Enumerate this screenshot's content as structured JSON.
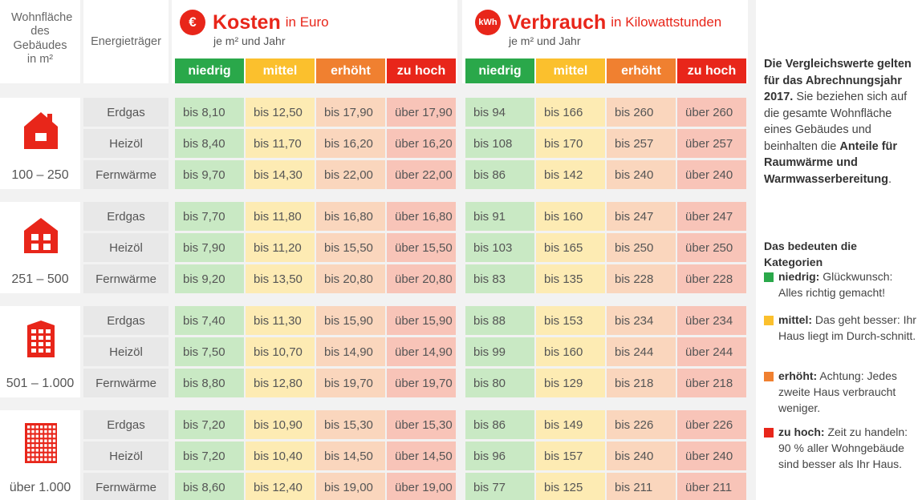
{
  "header": {
    "area_label": "Wohnfläche des Gebäudes in m²",
    "carrier_label": "Energieträger",
    "costs": {
      "icon": "€",
      "title": "Kosten",
      "title_suffix": "in Euro",
      "subtitle": "je m² und Jahr"
    },
    "consumption": {
      "icon": "kWh",
      "title": "Verbrauch",
      "title_suffix": "in Kilowattstunden",
      "subtitle": "je m² und Jahr"
    },
    "categories": [
      "niedrig",
      "mittel",
      "erhöht",
      "zu hoch"
    ]
  },
  "colors": {
    "accent": "#e8261a",
    "cat_dark": [
      "#2aa84a",
      "#fbc02d",
      "#f08030",
      "#e8261a"
    ],
    "cat_light": [
      "#c9e9c4",
      "#fdebb3",
      "#fad6bd",
      "#f8c4b8"
    ]
  },
  "groups": [
    {
      "size": "100 – 250",
      "icon": "house-small-icon",
      "rows": [
        {
          "carrier": "Erdgas",
          "costs": [
            "bis  8,10",
            "bis 12,50",
            "bis 17,90",
            "über 17,90"
          ],
          "consumption": [
            "bis  94",
            "bis  166",
            "bis  260",
            "über  260"
          ]
        },
        {
          "carrier": "Heizöl",
          "costs": [
            "bis  8,40",
            "bis 11,70",
            "bis 16,20",
            "über 16,20"
          ],
          "consumption": [
            "bis  108",
            "bis  170",
            "bis  257",
            "über  257"
          ]
        },
        {
          "carrier": "Fernwärme",
          "costs": [
            "bis  9,70",
            "bis 14,30",
            "bis 22,00",
            "über 22,00"
          ],
          "consumption": [
            "bis  86",
            "bis  142",
            "bis  240",
            "über  240"
          ]
        }
      ]
    },
    {
      "size": "251 – 500",
      "icon": "house-medium-icon",
      "rows": [
        {
          "carrier": "Erdgas",
          "costs": [
            "bis  7,70",
            "bis 11,80",
            "bis 16,80",
            "über 16,80"
          ],
          "consumption": [
            "bis  91",
            "bis  160",
            "bis  247",
            "über  247"
          ]
        },
        {
          "carrier": "Heizöl",
          "costs": [
            "bis  7,90",
            "bis 11,20",
            "bis 15,50",
            "über 15,50"
          ],
          "consumption": [
            "bis  103",
            "bis  165",
            "bis  250",
            "über  250"
          ]
        },
        {
          "carrier": "Fernwärme",
          "costs": [
            "bis  9,20",
            "bis 13,50",
            "bis 20,80",
            "über 20,80"
          ],
          "consumption": [
            "bis  83",
            "bis  135",
            "bis  228",
            "über  228"
          ]
        }
      ]
    },
    {
      "size": "501 – 1.000",
      "icon": "apartment-building-icon",
      "rows": [
        {
          "carrier": "Erdgas",
          "costs": [
            "bis  7,40",
            "bis 11,30",
            "bis 15,90",
            "über 15,90"
          ],
          "consumption": [
            "bis  88",
            "bis  153",
            "bis  234",
            "über  234"
          ]
        },
        {
          "carrier": "Heizöl",
          "costs": [
            "bis  7,50",
            "bis 10,70",
            "bis 14,90",
            "über 14,90"
          ],
          "consumption": [
            "bis  99",
            "bis  160",
            "bis  244",
            "über  244"
          ]
        },
        {
          "carrier": "Fernwärme",
          "costs": [
            "bis  8,80",
            "bis 12,80",
            "bis 19,70",
            "über 19,70"
          ],
          "consumption": [
            "bis  80",
            "bis  129",
            "bis  218",
            "über  218"
          ]
        }
      ]
    },
    {
      "size": "über 1.000",
      "icon": "tower-block-icon",
      "rows": [
        {
          "carrier": "Erdgas",
          "costs": [
            "bis  7,20",
            "bis 10,90",
            "bis 15,30",
            "über 15,30"
          ],
          "consumption": [
            "bis  86",
            "bis  149",
            "bis  226",
            "über  226"
          ]
        },
        {
          "carrier": "Heizöl",
          "costs": [
            "bis  7,20",
            "bis 10,40",
            "bis 14,50",
            "über 14,50"
          ],
          "consumption": [
            "bis  96",
            "bis  157",
            "bis  240",
            "über  240"
          ]
        },
        {
          "carrier": "Fernwärme",
          "costs": [
            "bis  8,60",
            "bis 12,40",
            "bis 19,00",
            "über 19,00"
          ],
          "consumption": [
            "bis  77",
            "bis  125",
            "bis  211",
            "über  211"
          ]
        }
      ]
    }
  ],
  "sidebar": {
    "intro_bold": "Die Vergleichswerte gelten für das Abrechnungsjahr 2017.",
    "intro_text": "Sie beziehen sich auf die gesamte Wohnfläche eines Gebäudes und beinhalten die",
    "intro_bold2": "Anteile für Raumwärme und Warmwasserbereitung",
    "intro_end": ".",
    "legend_title": "Das bedeuten die Kategorien",
    "legend": [
      {
        "term": "niedrig:",
        "text": "Glückwunsch: Alles richtig gemacht!"
      },
      {
        "term": "mittel:",
        "text": "Das geht besser: Ihr Haus liegt im Durch-schnitt."
      },
      {
        "term": "erhöht:",
        "text": "Achtung: Jedes zweite Haus verbraucht weniger."
      },
      {
        "term": "zu hoch:",
        "text": "Zeit zu handeln: 90 % aller Wohngebäude sind besser als Ihr Haus."
      }
    ]
  }
}
